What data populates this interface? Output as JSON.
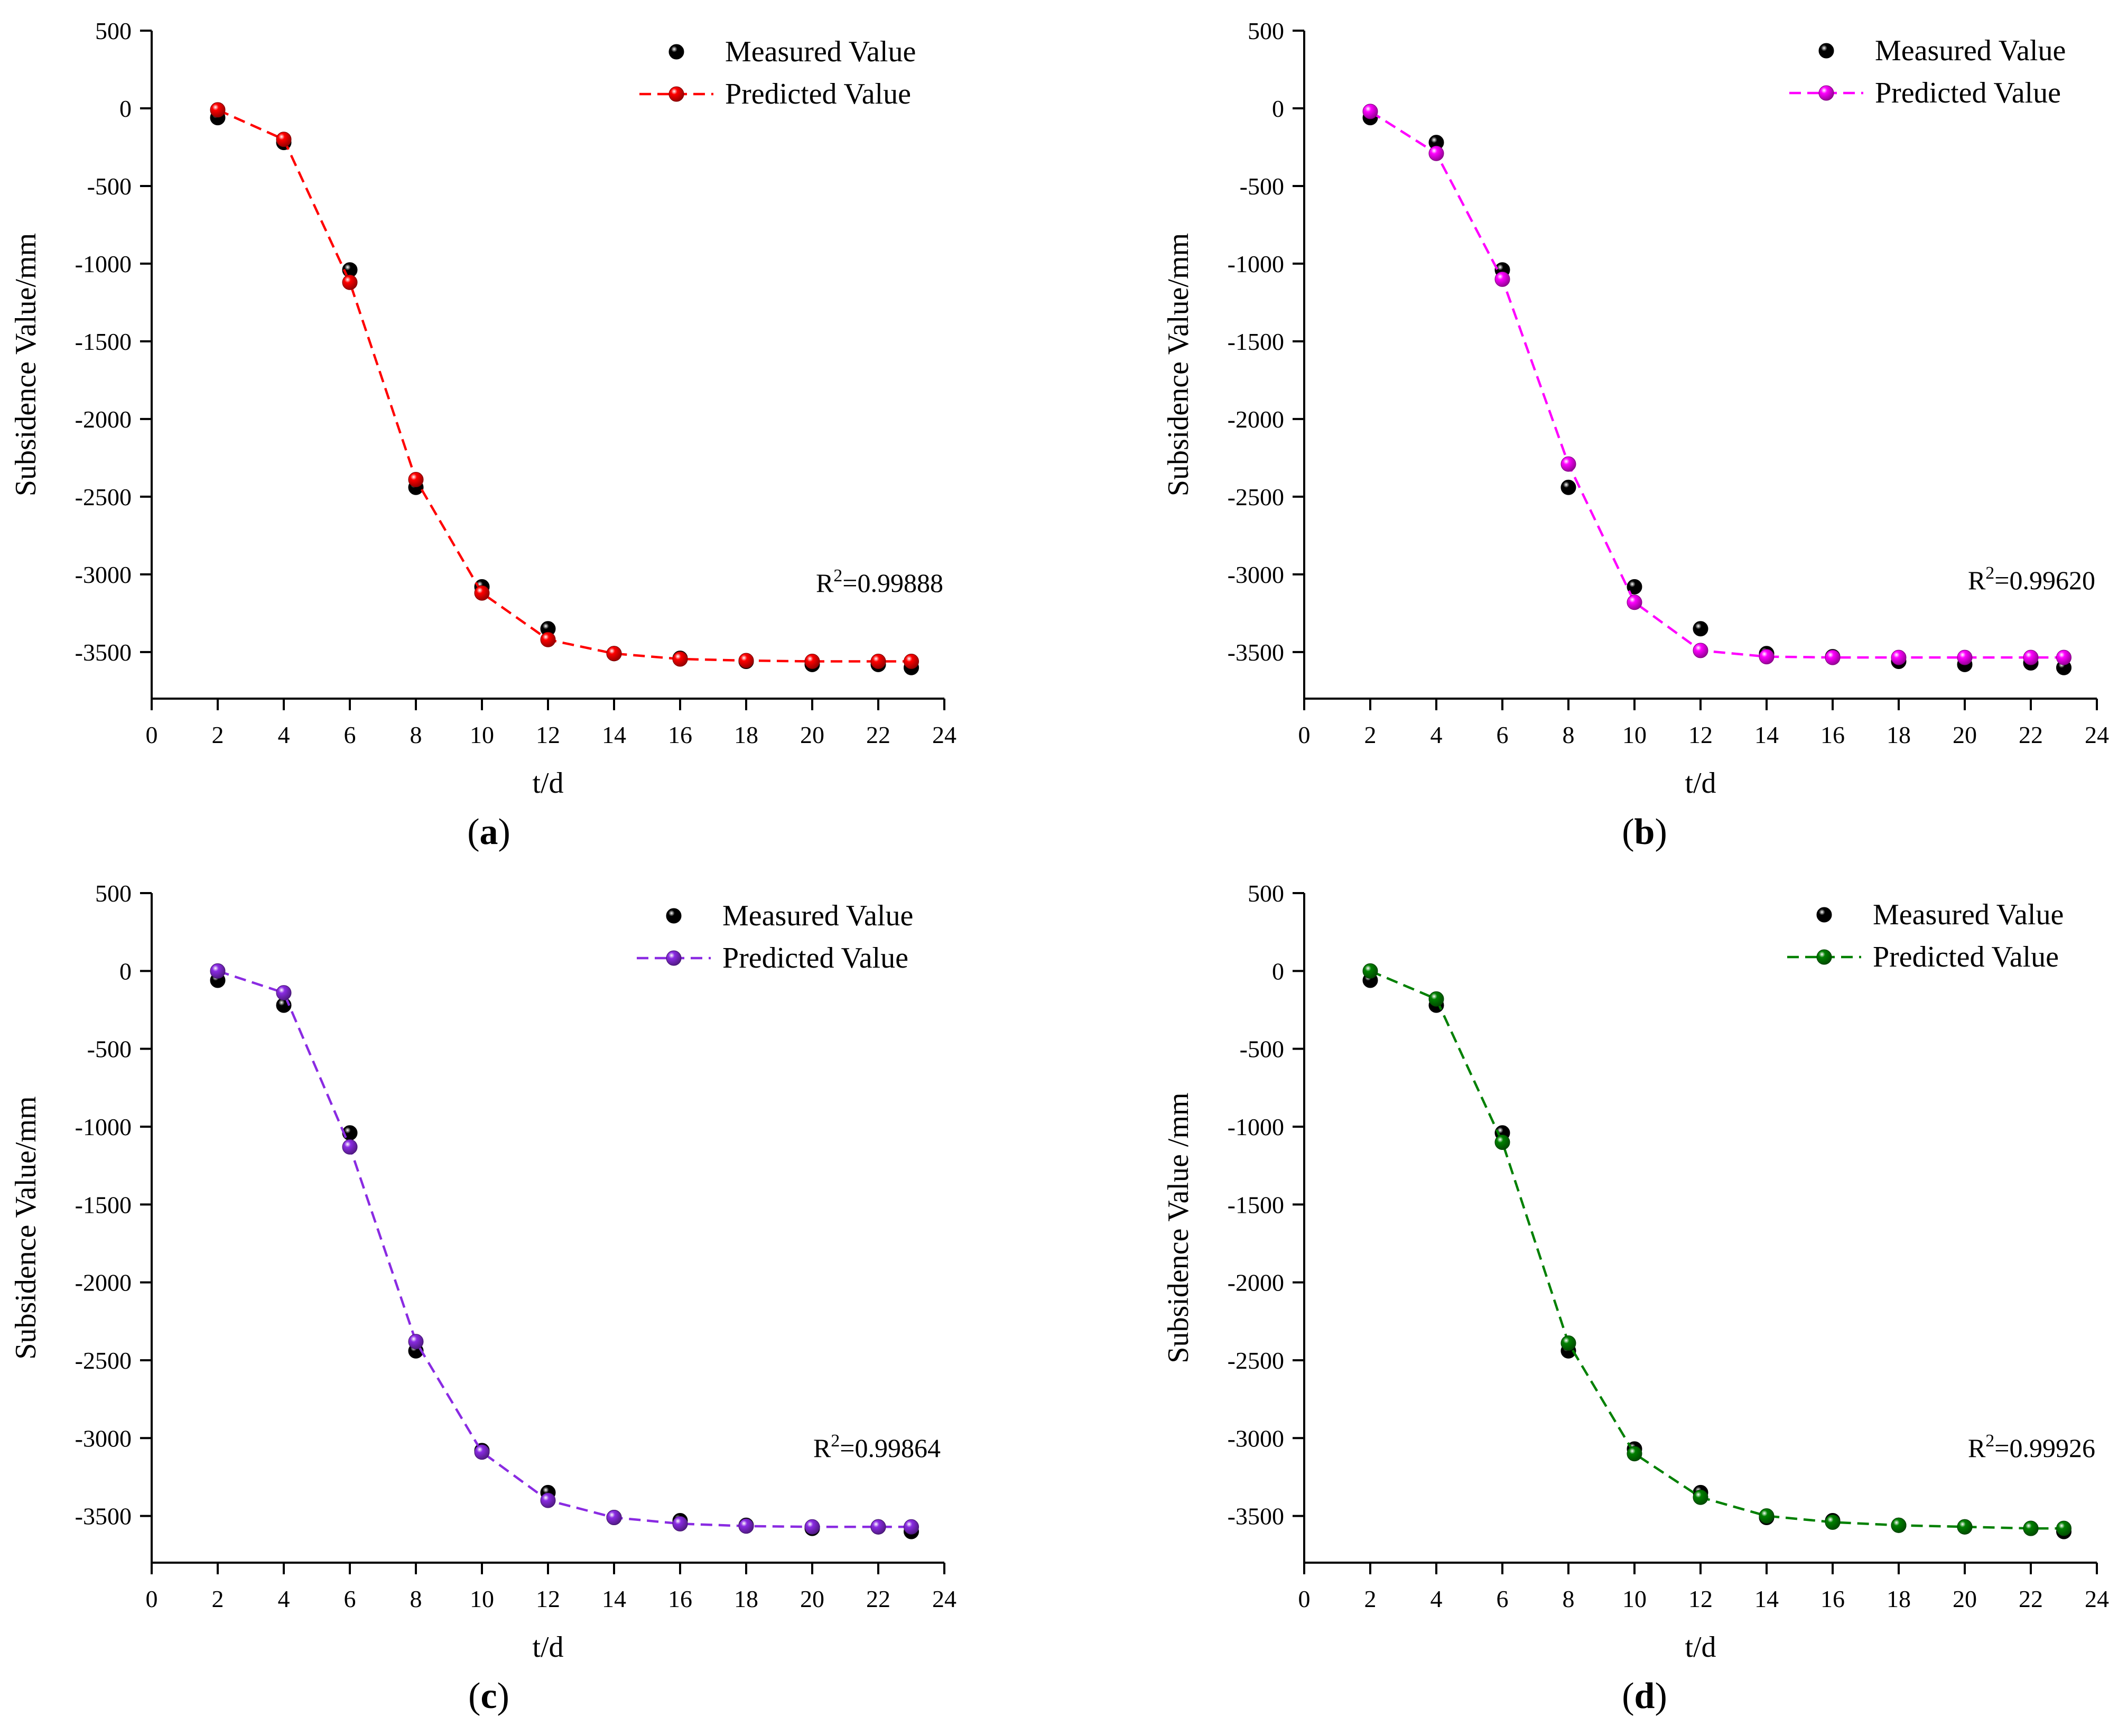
{
  "chart_data": [
    {
      "type": "scatter",
      "panel_label": "a",
      "xlabel": "t/d",
      "ylabel": "Subsidence Value/mm",
      "xlim": [
        0,
        24
      ],
      "ylim": [
        -3800,
        500
      ],
      "xticks": [
        0,
        2,
        4,
        6,
        8,
        10,
        12,
        14,
        16,
        18,
        20,
        22,
        24
      ],
      "yticks": [
        500,
        0,
        -500,
        -1000,
        -1500,
        -2000,
        -2500,
        -3000,
        -3500
      ],
      "grid": false,
      "legend_position": "top-right",
      "annotation": {
        "prefix": "R",
        "superscript": "2",
        "value": "=0.99888"
      },
      "series": [
        {
          "name": "Measured Value",
          "color": "#000000",
          "line": false,
          "x": [
            2,
            4,
            6,
            8,
            10,
            12,
            14,
            16,
            18,
            20,
            22,
            23
          ],
          "y": [
            -60,
            -220,
            -1040,
            -2440,
            -3080,
            -3350,
            -3510,
            -3540,
            -3560,
            -3580,
            -3580,
            -3600
          ]
        },
        {
          "name": "Predicted Value",
          "color": "#ff0000",
          "line": true,
          "x": [
            2,
            4,
            6,
            8,
            10,
            12,
            14,
            16,
            18,
            20,
            22,
            23
          ],
          "y": [
            -10,
            -200,
            -1120,
            -2390,
            -3120,
            -3420,
            -3510,
            -3545,
            -3555,
            -3560,
            -3560,
            -3560
          ]
        }
      ]
    },
    {
      "type": "scatter",
      "panel_label": "b",
      "xlabel": "t/d",
      "ylabel": "Subsidence Value/mm",
      "xlim": [
        0,
        24
      ],
      "ylim": [
        -3800,
        500
      ],
      "xticks": [
        0,
        2,
        4,
        6,
        8,
        10,
        12,
        14,
        16,
        18,
        20,
        22,
        24
      ],
      "yticks": [
        500,
        0,
        -500,
        -1000,
        -1500,
        -2000,
        -2500,
        -3000,
        -3500
      ],
      "grid": false,
      "legend_position": "top-right",
      "annotation": {
        "prefix": "R",
        "superscript": "2",
        "value": "=0.99620"
      },
      "series": [
        {
          "name": "Measured Value",
          "color": "#000000",
          "line": false,
          "x": [
            2,
            4,
            6,
            8,
            10,
            12,
            14,
            16,
            18,
            20,
            22,
            23
          ],
          "y": [
            -60,
            -220,
            -1040,
            -2440,
            -3080,
            -3350,
            -3510,
            -3530,
            -3560,
            -3580,
            -3570,
            -3600
          ]
        },
        {
          "name": "Predicted Value",
          "color": "#ff00ff",
          "line": true,
          "x": [
            2,
            4,
            6,
            8,
            10,
            12,
            14,
            16,
            18,
            20,
            22,
            23
          ],
          "y": [
            -20,
            -290,
            -1100,
            -2290,
            -3180,
            -3490,
            -3530,
            -3535,
            -3535,
            -3535,
            -3535,
            -3535
          ]
        }
      ]
    },
    {
      "type": "scatter",
      "panel_label": "c",
      "xlabel": "t/d",
      "ylabel": "Subsidence Value/mm",
      "xlim": [
        0,
        24
      ],
      "ylim": [
        -3800,
        500
      ],
      "xticks": [
        0,
        2,
        4,
        6,
        8,
        10,
        12,
        14,
        16,
        18,
        20,
        22,
        24
      ],
      "yticks": [
        500,
        0,
        -500,
        -1000,
        -1500,
        -2000,
        -2500,
        -3000,
        -3500
      ],
      "grid": false,
      "legend_position": "top-right",
      "annotation": {
        "prefix": "R",
        "superscript": "2",
        "value": "=0.99864"
      },
      "series": [
        {
          "name": "Measured Value",
          "color": "#000000",
          "line": false,
          "x": [
            2,
            4,
            6,
            8,
            10,
            12,
            14,
            16,
            18,
            20,
            22,
            23
          ],
          "y": [
            -60,
            -220,
            -1040,
            -2440,
            -3080,
            -3350,
            -3510,
            -3530,
            -3560,
            -3580,
            -3570,
            -3600
          ]
        },
        {
          "name": "Predicted Value",
          "color": "#8a2be2",
          "line": true,
          "x": [
            2,
            4,
            6,
            8,
            10,
            12,
            14,
            16,
            18,
            20,
            22,
            23
          ],
          "y": [
            0,
            -140,
            -1130,
            -2380,
            -3090,
            -3400,
            -3510,
            -3550,
            -3565,
            -3570,
            -3570,
            -3570
          ]
        }
      ]
    },
    {
      "type": "scatter",
      "panel_label": "d",
      "xlabel": "t/d",
      "ylabel": "Subsidence Value /mm",
      "xlim": [
        0,
        24
      ],
      "ylim": [
        -3800,
        500
      ],
      "xticks": [
        0,
        2,
        4,
        6,
        8,
        10,
        12,
        14,
        16,
        18,
        20,
        22,
        24
      ],
      "yticks": [
        500,
        0,
        -500,
        -1000,
        -1500,
        -2000,
        -2500,
        -3000,
        -3500
      ],
      "grid": false,
      "legend_position": "top-right",
      "annotation": {
        "prefix": "R",
        "superscript": "2",
        "value": "=0.99926"
      },
      "series": [
        {
          "name": "Measured Value",
          "color": "#000000",
          "line": false,
          "x": [
            2,
            4,
            6,
            8,
            10,
            12,
            14,
            16,
            18,
            20,
            22,
            23
          ],
          "y": [
            -60,
            -220,
            -1040,
            -2440,
            -3070,
            -3350,
            -3510,
            -3530,
            -3560,
            -3570,
            -3580,
            -3600
          ]
        },
        {
          "name": "Predicted Value",
          "color": "#008000",
          "line": true,
          "x": [
            2,
            4,
            6,
            8,
            10,
            12,
            14,
            16,
            18,
            20,
            22,
            23
          ],
          "y": [
            0,
            -180,
            -1100,
            -2390,
            -3100,
            -3380,
            -3500,
            -3540,
            -3560,
            -3570,
            -3580,
            -3580
          ]
        }
      ]
    }
  ]
}
